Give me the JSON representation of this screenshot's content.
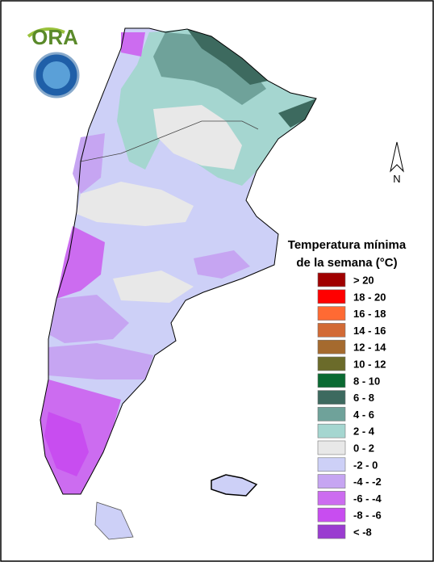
{
  "logo": {
    "name": "ORA"
  },
  "north_arrow": "N",
  "legend": {
    "title": [
      "Temperatura mínima",
      "de la semana (°C)"
    ],
    "items": [
      {
        "label": "> 20",
        "color": "#a00000"
      },
      {
        "label": "18 - 20",
        "color": "#ff0000"
      },
      {
        "label": "16 - 18",
        "color": "#ff6a33"
      },
      {
        "label": "14 - 16",
        "color": "#d26a35"
      },
      {
        "label": "12 - 14",
        "color": "#a56a2e"
      },
      {
        "label": "10 - 12",
        "color": "#6b6b2a"
      },
      {
        "label": "8 - 10",
        "color": "#0a6a32"
      },
      {
        "label": "6 - 8",
        "color": "#3d6a5f"
      },
      {
        "label": "4 - 6",
        "color": "#6fa29a"
      },
      {
        "label": "2 - 4",
        "color": "#a5d6d0"
      },
      {
        "label": "0 - 2",
        "color": "#e8e8e8"
      },
      {
        "label": "-2 - 0",
        "color": "#cdd0f7"
      },
      {
        "label": "-4 - -2",
        "color": "#c6a5f2"
      },
      {
        "label": "-6 - -4",
        "color": "#cc6cf0"
      },
      {
        "label": "-8 - -6",
        "color": "#c84df0"
      },
      {
        "label": "< -8",
        "color": "#9a3cd0"
      }
    ]
  }
}
